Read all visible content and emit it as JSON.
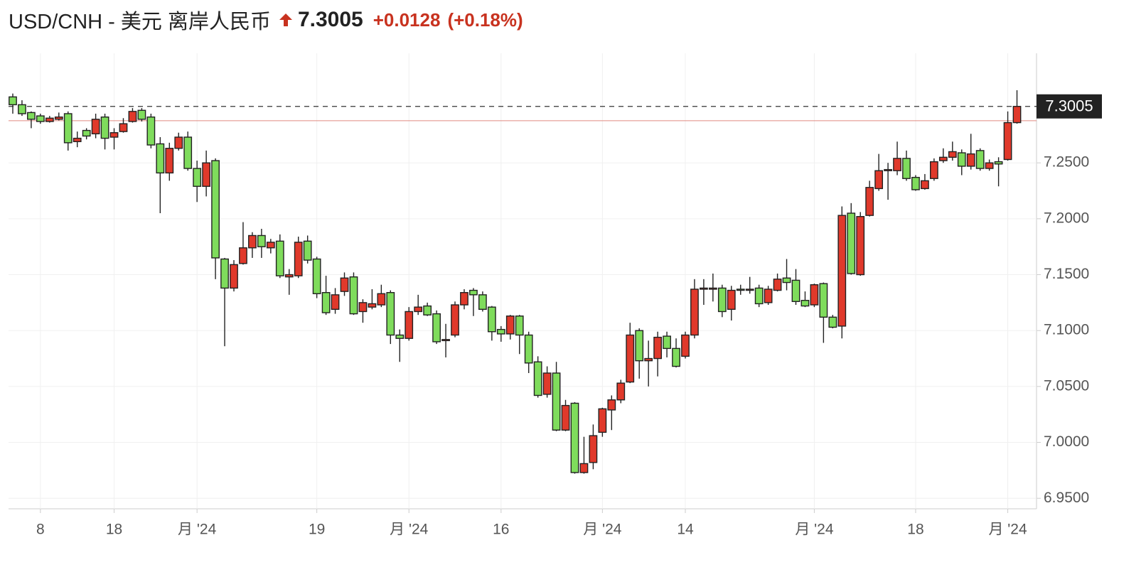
{
  "header": {
    "symbol": "USD/CNH - 美元 离岸人民币",
    "price": "7.3005",
    "change": "+0.0128",
    "change_pct": "(+0.18%)"
  },
  "chart_data": {
    "type": "candlestick",
    "categories": [
      null,
      null,
      null,
      "8",
      null,
      null,
      null,
      null,
      null,
      null,
      null,
      "18",
      null,
      null,
      null,
      null,
      null,
      null,
      null,
      null,
      "月 '24",
      null,
      null,
      null,
      null,
      null,
      null,
      null,
      null,
      null,
      null,
      null,
      null,
      "19",
      null,
      null,
      null,
      null,
      null,
      null,
      null,
      null,
      null,
      "月 '24",
      null,
      null,
      null,
      null,
      null,
      null,
      null,
      null,
      null,
      "16",
      null,
      null,
      null,
      null,
      null,
      null,
      null,
      null,
      null,
      null,
      "月 '24",
      null,
      null,
      null,
      null,
      null,
      null,
      null,
      null,
      "14",
      null,
      null,
      null,
      null,
      null,
      null,
      null,
      null,
      null,
      null,
      null,
      null,
      null,
      "月 '24",
      null,
      null,
      null,
      null,
      null,
      null,
      null,
      null,
      null,
      null,
      "18",
      null,
      null,
      null,
      null,
      null,
      null,
      null,
      null,
      null,
      "月 '24",
      null
    ],
    "open": [
      7.309,
      7.302,
      7.295,
      7.292,
      7.287,
      7.289,
      7.294,
      7.269,
      7.279,
      7.276,
      7.291,
      7.273,
      7.278,
      7.287,
      7.297,
      7.291,
      7.267,
      7.241,
      7.263,
      7.273,
      7.245,
      7.229,
      7.252,
      7.164,
      7.138,
      7.16,
      7.174,
      7.185,
      7.174,
      7.18,
      7.148,
      7.149,
      7.18,
      7.164,
      7.134,
      7.119,
      7.135,
      7.148,
      7.117,
      7.121,
      7.123,
      7.134,
      7.096,
      7.093,
      7.117,
      7.122,
      7.115,
      7.091,
      7.096,
      7.123,
      7.136,
      7.132,
      7.121,
      7.101,
      7.097,
      7.113,
      7.096,
      7.072,
      7.043,
      7.062,
      7.011,
      7.035,
      6.973,
      6.982,
      7.009,
      7.029,
      7.038,
      7.054,
      7.1,
      7.073,
      7.075,
      7.095,
      7.084,
      7.077,
      7.096,
      7.137,
      7.137,
      7.138,
      7.119,
      7.137,
      7.136,
      7.138,
      7.125,
      7.136,
      7.147,
      7.145,
      7.127,
      7.123,
      7.142,
      7.112,
      7.104,
      7.205,
      7.15,
      7.203,
      7.227,
      7.243,
      7.243,
      7.254,
      7.237,
      7.227,
      7.236,
      7.252,
      7.255,
      7.259,
      7.247,
      7.261,
      7.245,
      7.251,
      7.253,
      7.286
    ],
    "high": [
      7.312,
      7.306,
      7.296,
      7.294,
      7.292,
      7.295,
      7.296,
      7.278,
      7.281,
      7.294,
      7.294,
      7.281,
      7.29,
      7.299,
      7.299,
      7.294,
      7.273,
      7.268,
      7.277,
      7.278,
      7.252,
      7.261,
      7.254,
      7.165,
      7.163,
      7.197,
      7.188,
      7.191,
      7.182,
      7.186,
      7.155,
      7.184,
      7.185,
      7.166,
      7.149,
      7.138,
      7.152,
      7.152,
      7.128,
      7.137,
      7.141,
      7.136,
      7.101,
      7.121,
      7.132,
      7.125,
      7.118,
      7.106,
      7.126,
      7.137,
      7.138,
      7.135,
      7.122,
      7.104,
      7.114,
      7.114,
      7.099,
      7.077,
      7.068,
      7.072,
      7.038,
      7.036,
      7.005,
      7.016,
      7.031,
      7.042,
      7.056,
      7.107,
      7.102,
      7.091,
      7.099,
      7.099,
      7.093,
      7.099,
      7.146,
      7.146,
      7.151,
      7.141,
      7.14,
      7.141,
      7.148,
      7.141,
      7.14,
      7.151,
      7.164,
      7.155,
      7.135,
      7.142,
      7.143,
      7.114,
      7.211,
      7.214,
      7.206,
      7.234,
      7.258,
      7.25,
      7.269,
      7.261,
      7.239,
      7.24,
      7.254,
      7.263,
      7.269,
      7.262,
      7.276,
      7.263,
      7.253,
      7.255,
      7.296,
      7.315
    ],
    "low": [
      7.294,
      7.292,
      7.281,
      7.285,
      7.286,
      7.288,
      7.261,
      7.264,
      7.271,
      7.272,
      7.262,
      7.262,
      7.277,
      7.286,
      7.287,
      7.263,
      7.205,
      7.234,
      7.261,
      7.243,
      7.215,
      7.22,
      7.146,
      7.086,
      7.135,
      7.159,
      7.165,
      7.165,
      7.169,
      7.147,
      7.132,
      7.147,
      7.16,
      7.129,
      7.114,
      7.115,
      7.131,
      7.114,
      7.107,
      7.119,
      7.121,
      7.088,
      7.072,
      7.091,
      7.114,
      7.113,
      7.088,
      7.076,
      7.094,
      7.119,
      7.113,
      7.117,
      7.091,
      7.09,
      7.092,
      7.079,
      7.062,
      7.04,
      7.04,
      7.01,
      7.01,
      6.972,
      6.972,
      6.976,
      7.005,
      7.011,
      7.035,
      7.053,
      7.057,
      7.05,
      7.059,
      7.076,
      7.067,
      7.075,
      7.093,
      7.123,
      7.126,
      7.112,
      7.109,
      7.132,
      7.133,
      7.121,
      7.123,
      7.135,
      7.136,
      7.123,
      7.121,
      7.121,
      7.089,
      7.102,
      7.093,
      7.15,
      7.149,
      7.202,
      7.225,
      7.217,
      7.239,
      7.234,
      7.225,
      7.226,
      7.234,
      7.25,
      7.252,
      7.239,
      7.244,
      7.243,
      7.243,
      7.229,
      7.252,
      7.285
    ],
    "close": [
      7.302,
      7.294,
      7.289,
      7.287,
      7.29,
      7.291,
      7.268,
      7.272,
      7.274,
      7.289,
      7.272,
      7.277,
      7.285,
      7.296,
      7.289,
      7.266,
      7.241,
      7.263,
      7.273,
      7.245,
      7.229,
      7.25,
      7.165,
      7.138,
      7.159,
      7.174,
      7.185,
      7.175,
      7.179,
      7.149,
      7.15,
      7.179,
      7.163,
      7.133,
      7.116,
      7.132,
      7.147,
      7.115,
      7.125,
      7.124,
      7.133,
      7.096,
      7.093,
      7.117,
      7.121,
      7.114,
      7.09,
      7.092,
      7.123,
      7.134,
      7.132,
      7.119,
      7.099,
      7.097,
      7.113,
      7.096,
      7.071,
      7.042,
      7.062,
      7.011,
      7.033,
      6.973,
      6.981,
      7.006,
      7.03,
      7.038,
      7.053,
      7.096,
      7.073,
      7.075,
      7.094,
      7.084,
      7.068,
      7.096,
      7.137,
      7.138,
      7.138,
      7.117,
      7.136,
      7.136,
      7.137,
      7.124,
      7.137,
      7.146,
      7.143,
      7.126,
      7.122,
      7.141,
      7.112,
      7.103,
      7.203,
      7.151,
      7.202,
      7.228,
      7.243,
      7.244,
      7.254,
      7.236,
      7.226,
      7.234,
      7.251,
      7.255,
      7.26,
      7.247,
      7.258,
      7.245,
      7.25,
      7.249,
      7.286,
      7.3005
    ],
    "up_color": "#e0392b",
    "down_color": "#7fdc5c",
    "last_price": 7.3005,
    "prev_close": 7.2877,
    "ylim": [
      6.9406,
      7.348
    ],
    "yticks": [
      {
        "value": 6.95,
        "label": "6.9500"
      },
      {
        "value": 7.0,
        "label": "7.0000"
      },
      {
        "value": 7.05,
        "label": "7.0500"
      },
      {
        "value": 7.1,
        "label": "7.1000"
      },
      {
        "value": 7.15,
        "label": "7.1500"
      },
      {
        "value": 7.2,
        "label": "7.2000"
      },
      {
        "value": 7.25,
        "label": "7.2500"
      }
    ],
    "grid": true
  }
}
